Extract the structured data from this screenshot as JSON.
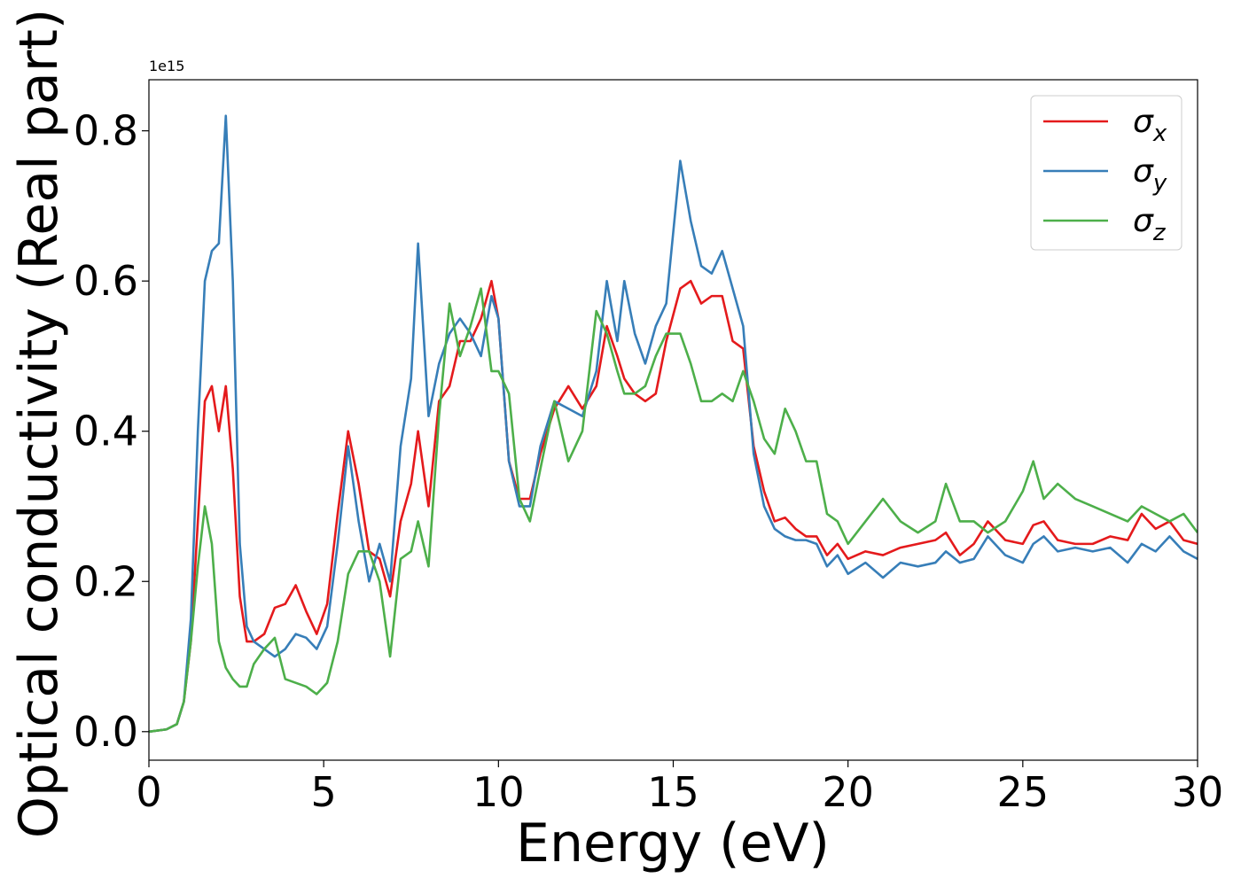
{
  "chart_data": {
    "type": "line",
    "x_label": "Energy (eV)",
    "y_label": "Optical conductivity (Real part)",
    "y_offset_label": "1e15",
    "xlim": [
      0,
      30
    ],
    "xticks": [
      0,
      5,
      10,
      15,
      20,
      25,
      30
    ],
    "ylim": [
      -0.038,
      0.868
    ],
    "yticks": [
      {
        "value": 0,
        "label": "0.0"
      },
      0.2,
      0.4,
      0.6,
      0.8
    ],
    "legend": "upper right",
    "grid": false,
    "x": [
      0,
      0.5,
      0.8,
      1.0,
      1.2,
      1.4,
      1.6,
      1.8,
      2.0,
      2.2,
      2.4,
      2.6,
      2.8,
      3.0,
      3.3,
      3.6,
      3.9,
      4.2,
      4.5,
      4.8,
      5.1,
      5.4,
      5.7,
      6.0,
      6.3,
      6.6,
      6.9,
      7.2,
      7.5,
      7.7,
      8.0,
      8.3,
      8.6,
      8.9,
      9.2,
      9.5,
      9.8,
      10.0,
      10.3,
      10.6,
      10.9,
      11.2,
      11.6,
      12.0,
      12.4,
      12.8,
      13.1,
      13.4,
      13.6,
      13.9,
      14.2,
      14.5,
      14.8,
      15.2,
      15.5,
      15.8,
      16.1,
      16.4,
      16.7,
      17.0,
      17.3,
      17.6,
      17.9,
      18.2,
      18.5,
      18.8,
      19.1,
      19.4,
      19.7,
      20.0,
      20.5,
      21.0,
      21.5,
      22.0,
      22.5,
      22.8,
      23.2,
      23.6,
      24.0,
      24.5,
      25.0,
      25.3,
      25.6,
      26.0,
      26.5,
      27.0,
      27.5,
      28.0,
      28.4,
      28.8,
      29.2,
      29.6,
      30.0
    ],
    "series": [
      {
        "name": "σx",
        "color": "#e41a1c",
        "values": [
          0,
          0.003,
          0.01,
          0.04,
          0.12,
          0.28,
          0.44,
          0.46,
          0.4,
          0.46,
          0.35,
          0.18,
          0.12,
          0.12,
          0.13,
          0.165,
          0.17,
          0.195,
          0.16,
          0.13,
          0.17,
          0.29,
          0.4,
          0.33,
          0.24,
          0.23,
          0.18,
          0.28,
          0.33,
          0.4,
          0.3,
          0.44,
          0.46,
          0.52,
          0.52,
          0.55,
          0.6,
          0.55,
          0.36,
          0.31,
          0.31,
          0.37,
          0.43,
          0.46,
          0.43,
          0.46,
          0.54,
          0.5,
          0.47,
          0.45,
          0.44,
          0.45,
          0.52,
          0.59,
          0.6,
          0.57,
          0.58,
          0.58,
          0.52,
          0.51,
          0.38,
          0.32,
          0.28,
          0.285,
          0.27,
          0.26,
          0.26,
          0.235,
          0.25,
          0.23,
          0.24,
          0.235,
          0.245,
          0.25,
          0.255,
          0.265,
          0.235,
          0.25,
          0.28,
          0.255,
          0.25,
          0.275,
          0.28,
          0.255,
          0.25,
          0.25,
          0.26,
          0.255,
          0.29,
          0.27,
          0.28,
          0.255,
          0.25
        ]
      },
      {
        "name": "σy",
        "color": "#377eb8",
        "values": [
          0,
          0.003,
          0.01,
          0.04,
          0.15,
          0.4,
          0.6,
          0.64,
          0.65,
          0.82,
          0.6,
          0.25,
          0.14,
          0.12,
          0.11,
          0.1,
          0.11,
          0.13,
          0.125,
          0.11,
          0.14,
          0.25,
          0.38,
          0.28,
          0.2,
          0.25,
          0.2,
          0.38,
          0.47,
          0.65,
          0.42,
          0.49,
          0.53,
          0.55,
          0.53,
          0.5,
          0.58,
          0.55,
          0.36,
          0.3,
          0.3,
          0.38,
          0.44,
          0.43,
          0.42,
          0.48,
          0.6,
          0.52,
          0.6,
          0.53,
          0.49,
          0.54,
          0.57,
          0.76,
          0.68,
          0.62,
          0.61,
          0.64,
          0.59,
          0.54,
          0.37,
          0.3,
          0.27,
          0.26,
          0.255,
          0.255,
          0.25,
          0.22,
          0.235,
          0.21,
          0.225,
          0.205,
          0.225,
          0.22,
          0.225,
          0.24,
          0.225,
          0.23,
          0.26,
          0.235,
          0.225,
          0.25,
          0.26,
          0.24,
          0.245,
          0.24,
          0.245,
          0.225,
          0.25,
          0.24,
          0.26,
          0.24,
          0.23
        ]
      },
      {
        "name": "σz",
        "color": "#4daf4a",
        "values": [
          0,
          0.003,
          0.01,
          0.04,
          0.12,
          0.22,
          0.3,
          0.25,
          0.12,
          0.085,
          0.07,
          0.06,
          0.06,
          0.09,
          0.11,
          0.125,
          0.07,
          0.065,
          0.06,
          0.05,
          0.065,
          0.12,
          0.21,
          0.24,
          0.24,
          0.2,
          0.1,
          0.23,
          0.24,
          0.28,
          0.22,
          0.42,
          0.57,
          0.5,
          0.54,
          0.59,
          0.48,
          0.48,
          0.45,
          0.31,
          0.28,
          0.35,
          0.44,
          0.36,
          0.4,
          0.56,
          0.53,
          0.48,
          0.45,
          0.45,
          0.46,
          0.5,
          0.53,
          0.53,
          0.49,
          0.44,
          0.44,
          0.45,
          0.44,
          0.48,
          0.44,
          0.39,
          0.37,
          0.43,
          0.4,
          0.36,
          0.36,
          0.29,
          0.28,
          0.25,
          0.28,
          0.31,
          0.28,
          0.265,
          0.28,
          0.33,
          0.28,
          0.28,
          0.265,
          0.28,
          0.32,
          0.36,
          0.31,
          0.33,
          0.31,
          0.3,
          0.29,
          0.28,
          0.3,
          0.29,
          0.28,
          0.29,
          0.265
        ]
      }
    ]
  }
}
